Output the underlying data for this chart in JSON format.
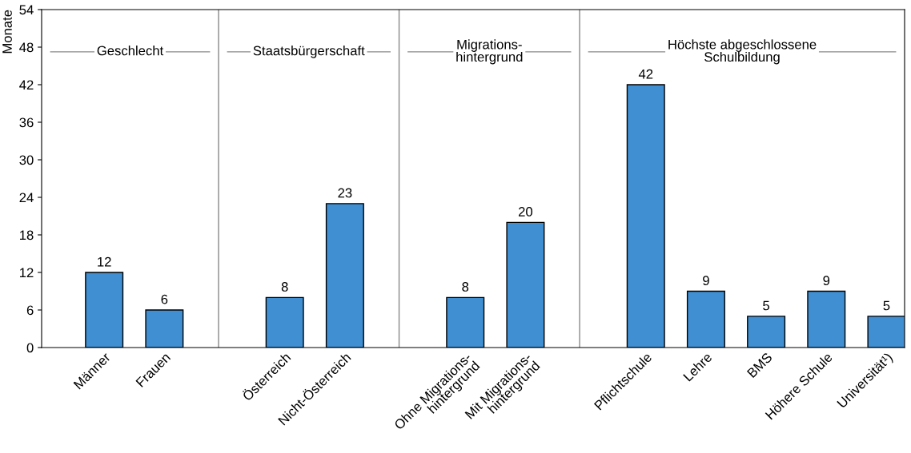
{
  "chart_data": {
    "type": "bar",
    "ylabel": "Monate",
    "categories": [
      "Männer",
      "Frauen",
      null,
      "Österreich",
      "Nicht-Österreich",
      null,
      "Ohne Migrations-\nhintergrund",
      "Mit Migrations-\nhintergrund",
      null,
      "Pflichtschule",
      "Lehre",
      "BMS",
      "Höhere Schule",
      "Universität¹)"
    ],
    "values": [
      12,
      6,
      null,
      8,
      23,
      null,
      8,
      20,
      null,
      42,
      9,
      5,
      9,
      5
    ],
    "color": "#3f8fd2",
    "ylim": [
      0,
      54
    ],
    "yticks": [
      0,
      6,
      12,
      18,
      24,
      30,
      36,
      42,
      48,
      54
    ],
    "data_labels": true,
    "grid": false,
    "legend": false,
    "annotations": [
      "Geschlecht",
      "Staatsbürgerschaft",
      "Migrations-\nhintergrund",
      "Höchste abgeschlossene\nSchulbildung"
    ]
  }
}
